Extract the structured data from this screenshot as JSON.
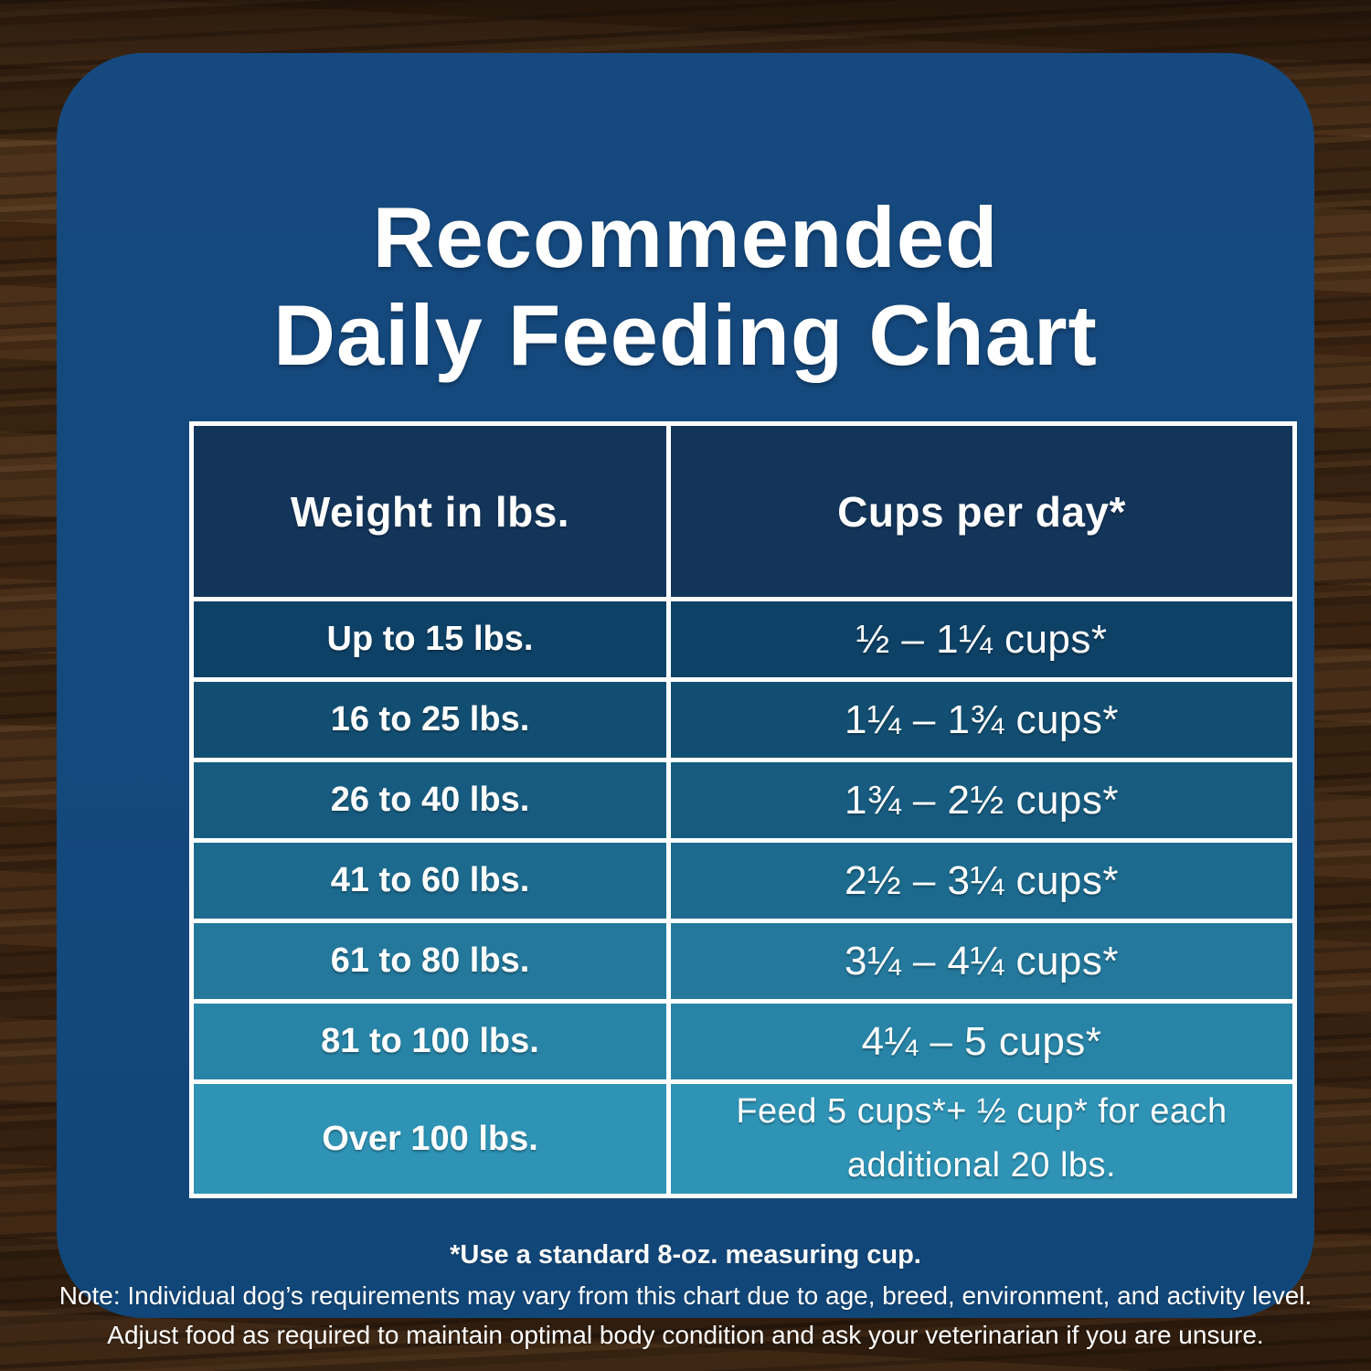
{
  "chart_data": {
    "type": "table",
    "title": "Recommended Daily Feeding Chart",
    "title_line1": "Recommended",
    "title_line2": "Daily Feeding Chart",
    "columns": [
      "Weight in lbs.",
      "Cups per day*"
    ],
    "rows": [
      [
        "Up to 15 lbs.",
        "½ – 1¼ cups*"
      ],
      [
        "16 to 25 lbs.",
        "1¼ – 1¾ cups*"
      ],
      [
        "26 to 40 lbs.",
        "1¾ – 2½ cups*"
      ],
      [
        "41 to 60 lbs.",
        "2½ – 3¼ cups*"
      ],
      [
        "61 to 80 lbs.",
        "3¼ – 4¼ cups*"
      ],
      [
        "81 to 100 lbs.",
        "4¼ – 5 cups*"
      ],
      [
        "Over 100 lbs.",
        "Feed 5 cups*+ ½ cup* for each additional 20 lbs."
      ]
    ],
    "header_bg": "#13355A",
    "row_colors": [
      "#0D4166",
      "#124E71",
      "#175C80",
      "#1C6A8E",
      "#23789C",
      "#2884A6",
      "#2E93B5"
    ],
    "card_bg": "#14497D",
    "border_color": "#FFFFFF",
    "footnote_bold": "*Use a standard 8-oz. measuring cup.",
    "note_line1": "Note: Individual dog’s requirements may vary from this chart due to age, breed, environment, and activity level.",
    "note_line2": "Adjust food as required to maintain optimal body condition and ask your veterinarian if you are unsure."
  }
}
